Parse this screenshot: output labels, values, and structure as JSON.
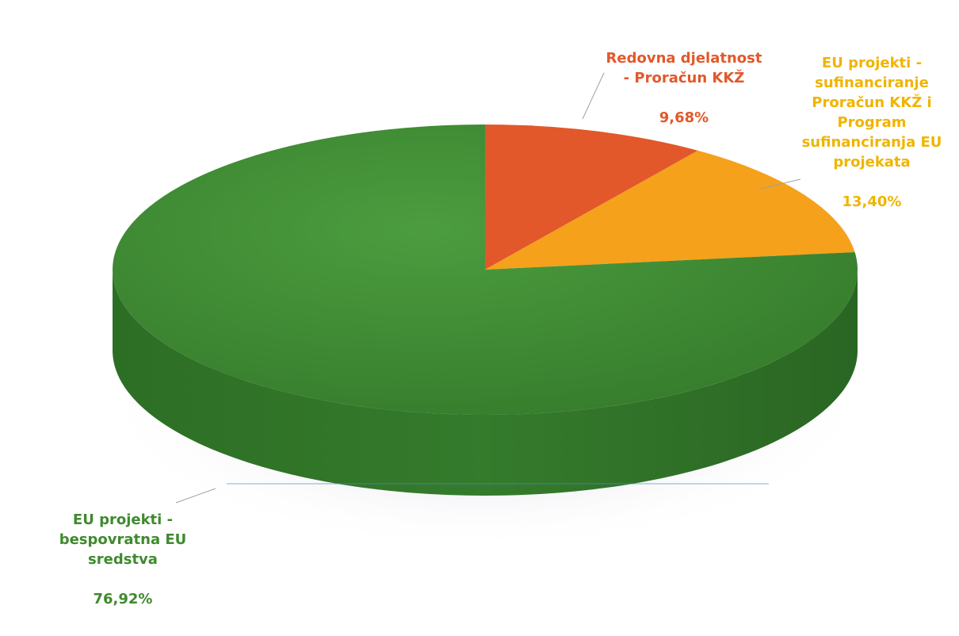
{
  "chart_data": {
    "type": "pie",
    "title": "",
    "slices": [
      {
        "name": "Redovna djelatnost - Proračun KKŽ",
        "label": "Redovna djelatnost\n- Proračun KKŽ",
        "value": 9.68,
        "value_text": "9,68%",
        "color": "#e2582a",
        "label_color": "#e2582a"
      },
      {
        "name": "EU projekti - sufinanciranje Proračun KKŽ i Program sufinanciranja EU projekata",
        "label": "EU projekti -\nsufinanciranje\nProračun KKŽ i\nProgram\nsufinanciranja EU\nprojekata",
        "value": 13.4,
        "value_text": "13,40%",
        "color": "#f5a11b",
        "label_color": "#f0b400"
      },
      {
        "name": "EU projekti - bespovratna EU sredstva",
        "label": "EU projekti -\nbespovratna EU\nsredstva",
        "value": 76.92,
        "value_text": "76,92%",
        "color": "#3e8f36",
        "label_color": "#3f8a2e"
      }
    ],
    "legend": "none",
    "style": "3d-pie"
  }
}
